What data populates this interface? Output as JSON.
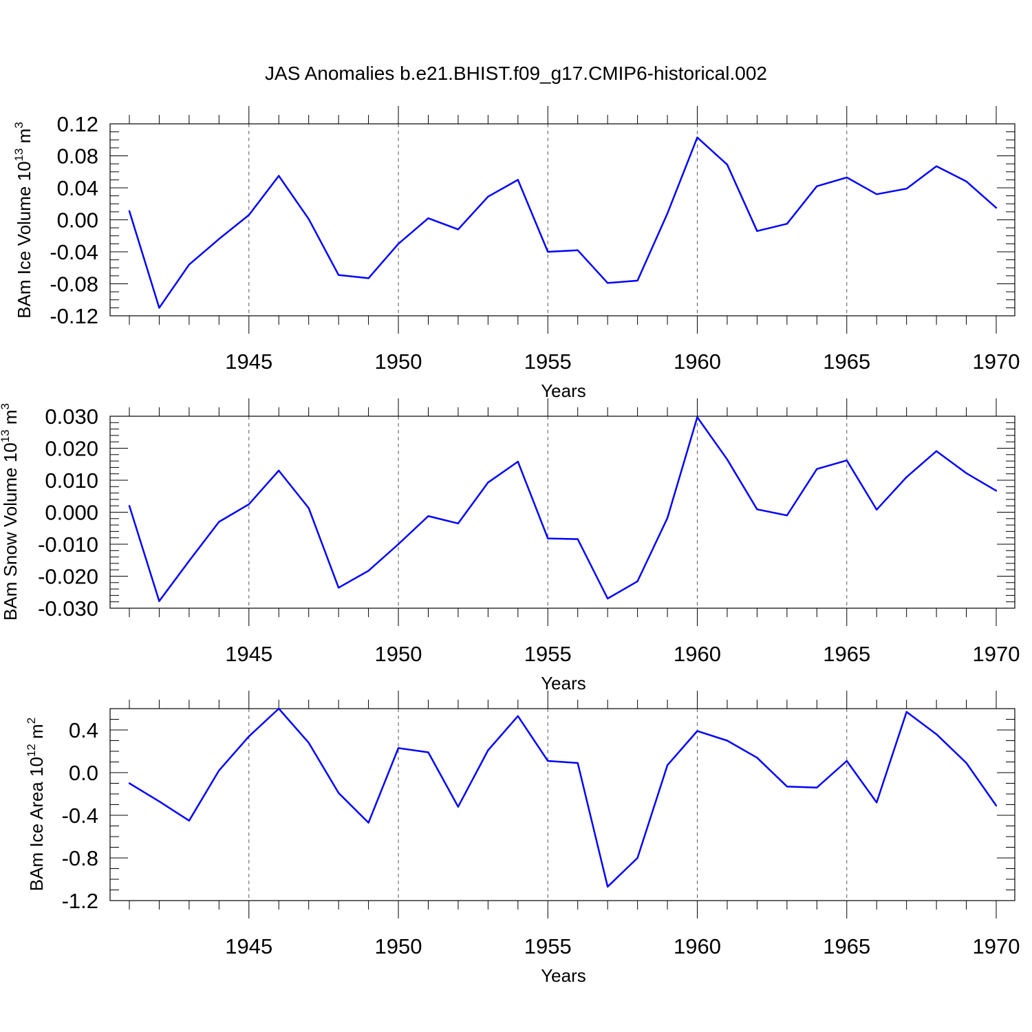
{
  "title": "JAS Anomalies b.e21.BHIST.f09_g17.CMIP6-historical.002",
  "colors": {
    "line": "#0000ff",
    "axis": "#000000",
    "grid": "#555555"
  },
  "chart_data": [
    {
      "type": "line",
      "ylabel_main": "BAm Ice Volume 10",
      "ylabel_exp": "13",
      "ylabel_unit": " m",
      "ylabel_unit_exp": "3",
      "xlabel": "Years",
      "xlim": [
        1941,
        1970
      ],
      "ylim": [
        -0.12,
        0.12
      ],
      "yticks": [
        -0.12,
        -0.08,
        -0.04,
        0.0,
        0.04,
        0.08,
        0.12
      ],
      "ytick_labels": [
        "-0.12",
        "-0.08",
        "-0.04",
        "0.00",
        "0.04",
        "0.08",
        "0.12"
      ],
      "minor_ystep": 0.01,
      "xticks": [
        1945,
        1950,
        1955,
        1960,
        1965,
        1970
      ],
      "xtick_labels": [
        "1945",
        "1950",
        "1955",
        "1960",
        "1965",
        "1970"
      ],
      "grid_x": [
        1945,
        1950,
        1955,
        1960,
        1965
      ],
      "x": [
        1941,
        1942,
        1943,
        1944,
        1945,
        1946,
        1947,
        1948,
        1949,
        1950,
        1951,
        1952,
        1953,
        1954,
        1955,
        1956,
        1957,
        1958,
        1959,
        1960,
        1961,
        1962,
        1963,
        1964,
        1965,
        1966,
        1967,
        1968,
        1969,
        1970
      ],
      "values": [
        0.011,
        -0.11,
        -0.056,
        -0.024,
        0.006,
        0.055,
        0.001,
        -0.069,
        -0.073,
        -0.03,
        0.002,
        -0.012,
        0.029,
        0.05,
        -0.04,
        -0.038,
        -0.079,
        -0.076,
        0.008,
        0.103,
        0.069,
        -0.014,
        -0.005,
        0.042,
        0.053,
        0.032,
        0.039,
        0.067,
        0.048,
        0.015
      ]
    },
    {
      "type": "line",
      "ylabel_main": "BAm Snow Volume 10",
      "ylabel_exp": "13",
      "ylabel_unit": " m",
      "ylabel_unit_exp": "3",
      "xlabel": "Years",
      "xlim": [
        1941,
        1970
      ],
      "ylim": [
        -0.03,
        0.03
      ],
      "yticks": [
        -0.03,
        -0.02,
        -0.01,
        0.0,
        0.01,
        0.02,
        0.03
      ],
      "ytick_labels": [
        "-0.030",
        "-0.020",
        "-0.010",
        "0.000",
        "0.010",
        "0.020",
        "0.030"
      ],
      "minor_ystep": 0.002,
      "xticks": [
        1945,
        1950,
        1955,
        1960,
        1965,
        1970
      ],
      "xtick_labels": [
        "1945",
        "1950",
        "1955",
        "1960",
        "1965",
        "1970"
      ],
      "grid_x": [
        1945,
        1950,
        1955,
        1960,
        1965
      ],
      "x": [
        1941,
        1942,
        1943,
        1944,
        1945,
        1946,
        1947,
        1948,
        1949,
        1950,
        1951,
        1952,
        1953,
        1954,
        1955,
        1956,
        1957,
        1958,
        1959,
        1960,
        1961,
        1962,
        1963,
        1964,
        1965,
        1966,
        1967,
        1968,
        1969,
        1970
      ],
      "values": [
        0.002,
        -0.0278,
        -0.0152,
        -0.003,
        0.0025,
        0.013,
        0.0013,
        -0.0236,
        -0.0183,
        -0.01,
        -0.0012,
        -0.0035,
        0.0093,
        0.0158,
        -0.0082,
        -0.0084,
        -0.027,
        -0.0216,
        -0.0018,
        0.0297,
        0.0165,
        0.0009,
        -0.001,
        0.0135,
        0.0162,
        0.0008,
        0.011,
        0.0191,
        0.0122,
        0.0067
      ]
    },
    {
      "type": "line",
      "ylabel_main": "BAm Ice Area 10",
      "ylabel_exp": "12",
      "ylabel_unit": " m",
      "ylabel_unit_exp": "2",
      "xlabel": "Years",
      "xlim": [
        1941,
        1970
      ],
      "ylim": [
        -1.2,
        0.6
      ],
      "yticks": [
        -1.2,
        -0.8,
        -0.4,
        0.0,
        0.4
      ],
      "ytick_labels": [
        "-1.2",
        "-0.8",
        "-0.4",
        "0.0",
        "0.4"
      ],
      "minor_ystep": 0.1,
      "xticks": [
        1945,
        1950,
        1955,
        1960,
        1965,
        1970
      ],
      "xtick_labels": [
        "1945",
        "1950",
        "1955",
        "1960",
        "1965",
        "1970"
      ],
      "grid_x": [
        1945,
        1950,
        1955,
        1960,
        1965
      ],
      "x": [
        1941,
        1942,
        1943,
        1944,
        1945,
        1946,
        1947,
        1948,
        1949,
        1950,
        1951,
        1952,
        1953,
        1954,
        1955,
        1956,
        1957,
        1958,
        1959,
        1960,
        1961,
        1962,
        1963,
        1964,
        1965,
        1966,
        1967,
        1968,
        1969,
        1970
      ],
      "values": [
        -0.1,
        -0.27,
        -0.45,
        0.02,
        0.34,
        0.6,
        0.28,
        -0.19,
        -0.47,
        0.23,
        0.19,
        -0.32,
        0.21,
        0.53,
        0.11,
        0.09,
        -1.07,
        -0.8,
        0.07,
        0.39,
        0.3,
        0.14,
        -0.13,
        -0.14,
        0.11,
        -0.28,
        0.57,
        0.36,
        0.09,
        -0.31
      ]
    }
  ]
}
